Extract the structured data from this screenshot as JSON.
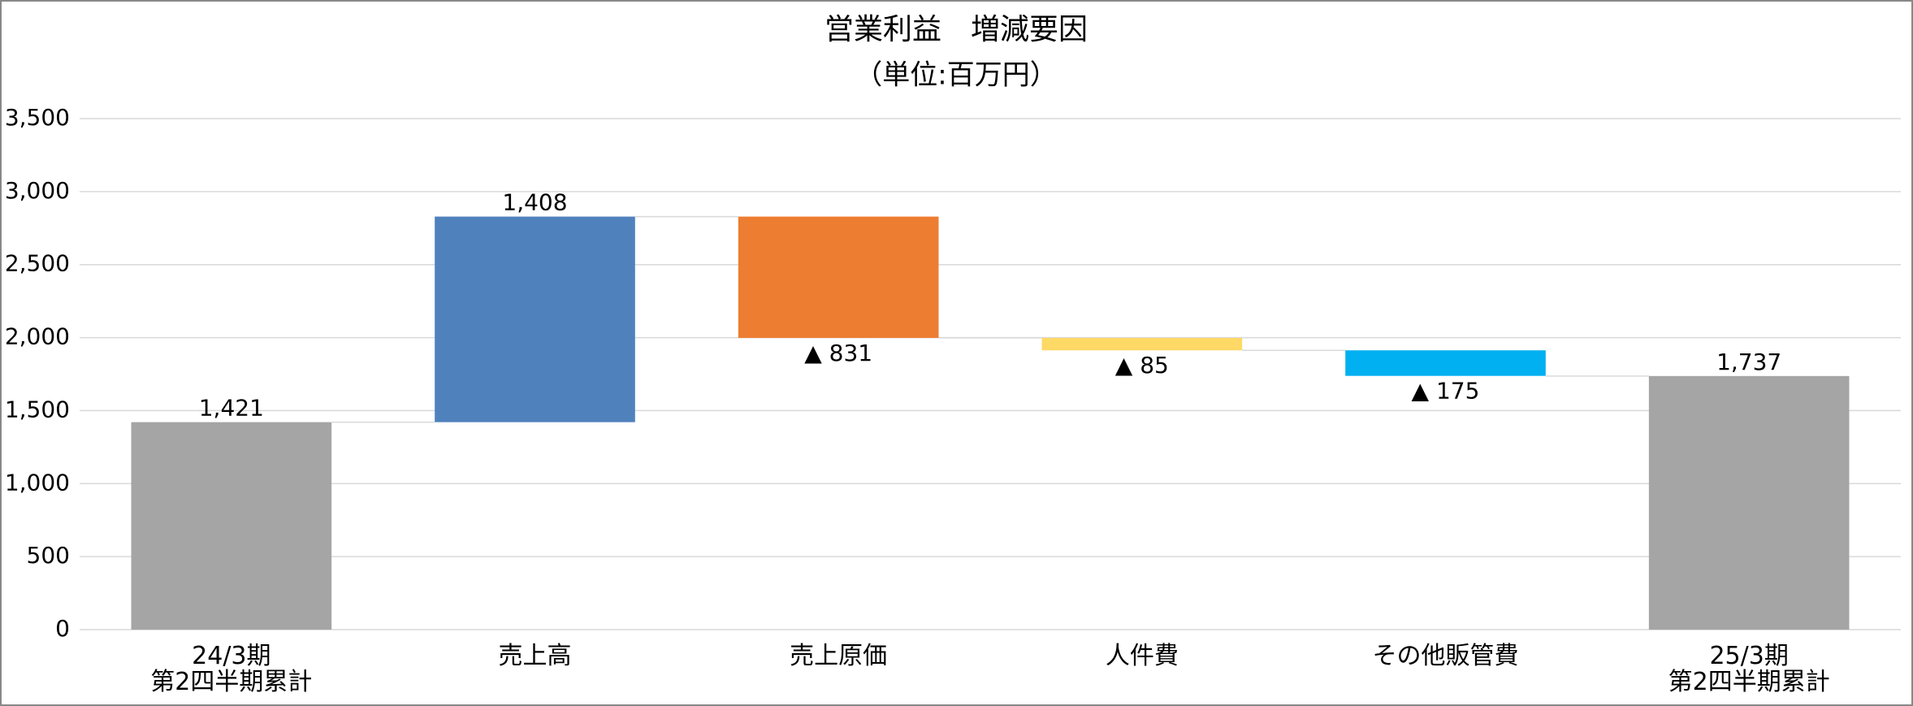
{
  "chart_data": {
    "type": "waterfall",
    "title": "営業利益　増減要因",
    "subtitle": "（単位:百万円）",
    "categories": [
      "24/3期\n第2四半期累計",
      "売上高",
      "売上原価",
      "人件費",
      "その他販管費",
      "25/3期\n第2四半期累計"
    ],
    "values": [
      1421,
      1408,
      -831,
      -85,
      -175,
      1737
    ],
    "value_labels": [
      "1,421",
      "1,408",
      "▲ 831",
      "▲ 85",
      "▲ 175",
      "1,737"
    ],
    "measure": [
      "absolute",
      "relative",
      "relative",
      "relative",
      "relative",
      "total"
    ],
    "colors": [
      "#a5a5a5",
      "#4f81bd",
      "#ed7d31",
      "#ffd966",
      "#00b0f0",
      "#a5a5a5"
    ],
    "ylim": [
      0,
      3500
    ],
    "yticks": [
      0,
      500,
      {
        "value": 1000,
        "label": "1,000"
      },
      {
        "value": 1500,
        "label": "1,500"
      },
      {
        "value": 2000,
        "label": "2,000"
      },
      {
        "value": 2500,
        "label": "2,500"
      },
      {
        "value": 3000,
        "label": "3,000"
      },
      {
        "value": 3500,
        "label": "3,500"
      }
    ],
    "grid": true
  }
}
